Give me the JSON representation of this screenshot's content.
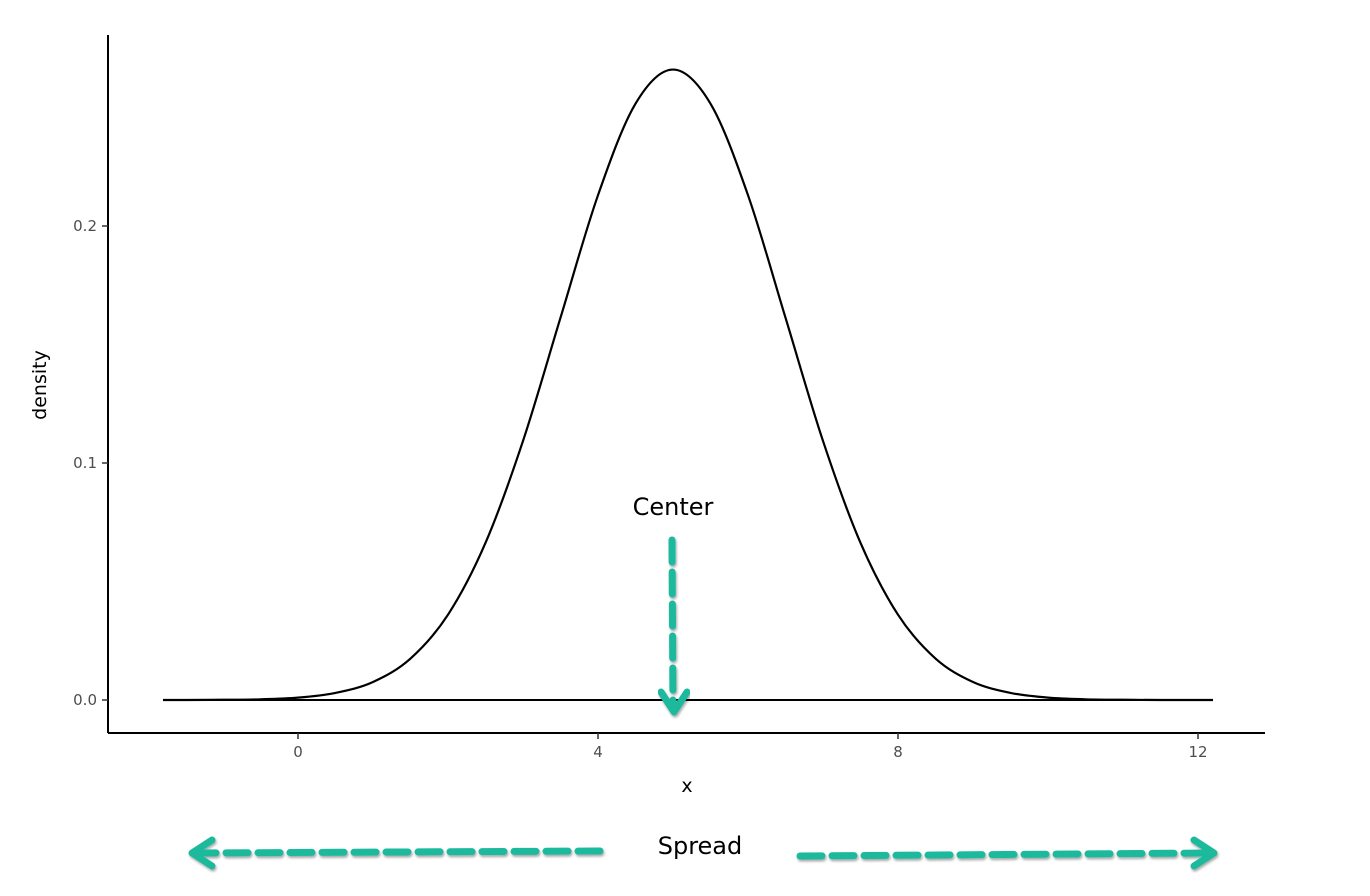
{
  "chart_data": {
    "type": "line",
    "title": "",
    "xlabel": "x",
    "ylabel": "density",
    "xlim": [
      -2.5,
      13
    ],
    "ylim": [
      -0.0135,
      0.28
    ],
    "x_ticks": [
      "0",
      "4",
      "8",
      "12"
    ],
    "y_ticks": [
      "0.0",
      "0.1",
      "0.2"
    ],
    "grid": false,
    "series": [
      {
        "x": [
          -1.8,
          -1.5,
          -1,
          -0.5,
          0,
          0.5,
          1,
          1.5,
          2,
          2.5,
          3,
          3.5,
          4,
          4.5,
          5,
          5.5,
          6,
          6.5,
          7,
          7.5,
          8,
          8.5,
          9,
          9.5,
          10,
          10.5,
          11,
          11.5,
          12.2
        ],
        "y": [
          0,
          0.0,
          0.0001,
          0.0003,
          0.001,
          0.003,
          0.0076,
          0.0175,
          0.036,
          0.0663,
          0.1093,
          0.1613,
          0.213,
          0.2516,
          0.266,
          0.2516,
          0.213,
          0.1613,
          0.1093,
          0.0663,
          0.036,
          0.0175,
          0.0076,
          0.003,
          0.001,
          0.0003,
          0.0001,
          0.0,
          0
        ]
      }
    ],
    "baseline": {
      "y": 0,
      "x_range": [
        -1.8,
        12.2
      ]
    },
    "annotations": {
      "center_label": "Center",
      "center_x": 5,
      "spread_label": "Spread"
    },
    "colors": {
      "curve": "#000000",
      "arrow": "#1fb99c"
    }
  }
}
